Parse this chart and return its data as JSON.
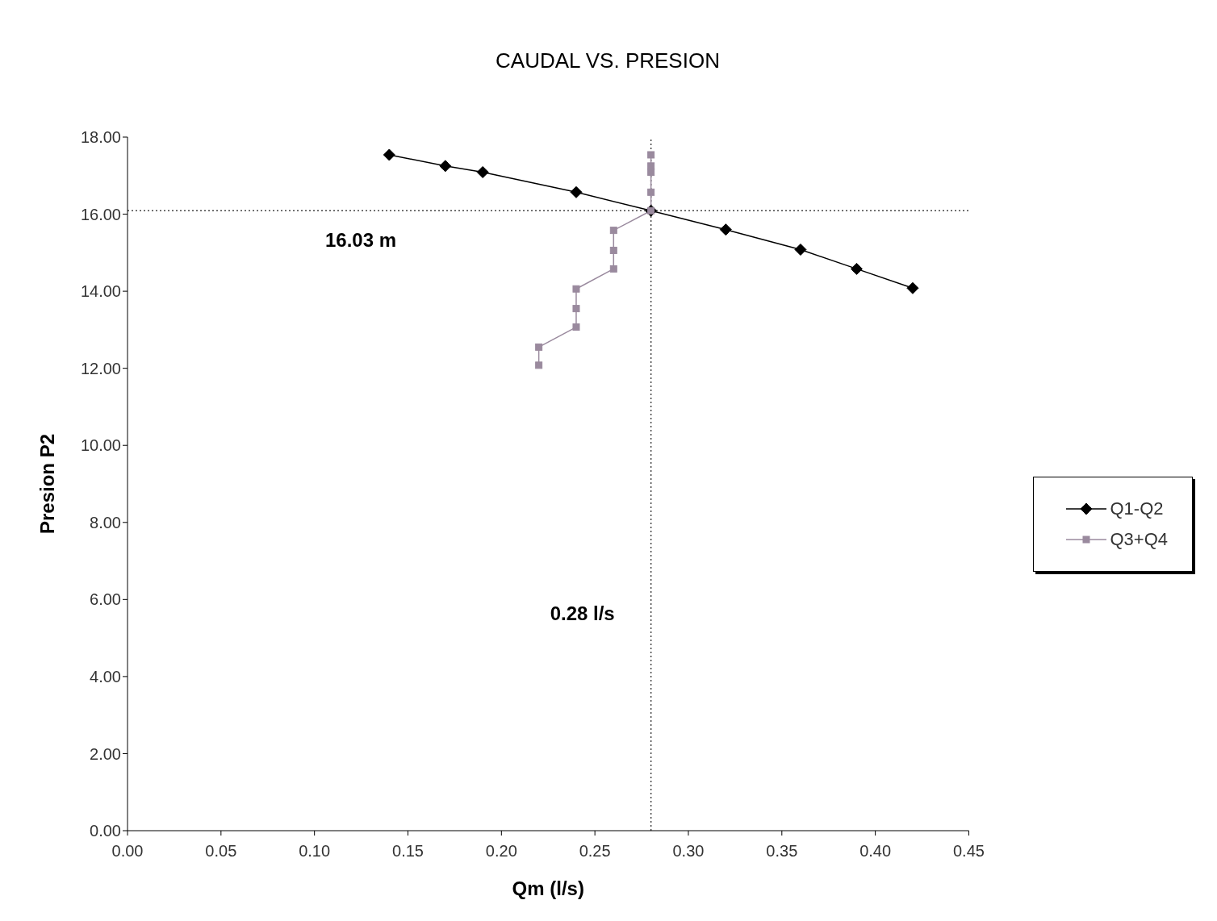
{
  "chart_data": {
    "type": "line",
    "title": "CAUDAL VS. PRESION",
    "xlabel": "Qm (l/s)",
    "ylabel": "Presion P2",
    "xlim": [
      0,
      0.45
    ],
    "xticks": [
      {
        "value": 0,
        "label": "0.00"
      },
      {
        "value": 0.05,
        "label": "0.05"
      },
      {
        "value": 0.1,
        "label": "0.10"
      },
      {
        "value": 0.15,
        "label": "0.15"
      },
      {
        "value": 0.2,
        "label": "0.20"
      },
      {
        "value": 0.25,
        "label": "0.25"
      },
      {
        "value": 0.3,
        "label": "0.30"
      },
      {
        "value": 0.35,
        "label": "0.35"
      },
      {
        "value": 0.4,
        "label": "0.40"
      },
      {
        "value": 0.45,
        "label": "0.45"
      }
    ],
    "ylim": [
      0,
      18
    ],
    "yticks": [
      {
        "value": 0,
        "label": "0.00"
      },
      {
        "value": 2,
        "label": "2.00"
      },
      {
        "value": 4,
        "label": "4.00"
      },
      {
        "value": 6,
        "label": "6.00"
      },
      {
        "value": 8,
        "label": "8.00"
      },
      {
        "value": 10,
        "label": "10.00"
      },
      {
        "value": 12,
        "label": "12.00"
      },
      {
        "value": 14,
        "label": "14.00"
      },
      {
        "value": 16,
        "label": "16.00"
      },
      {
        "value": 18,
        "label": "18.00"
      }
    ],
    "grid": false,
    "legend": "right",
    "line_style": "solid",
    "series": [
      {
        "name": "Q1-Q2",
        "color": "#000000",
        "marker": "diamond",
        "x": [
          0.14,
          0.17,
          0.19,
          0.24,
          0.28,
          0.32,
          0.36,
          0.39,
          0.42
        ],
        "values": [
          17.54,
          17.25,
          17.09,
          16.57,
          16.09,
          15.6,
          15.08,
          14.58,
          14.08
        ]
      },
      {
        "name": "Q3+Q4",
        "color": "#9a8a9e",
        "marker": "square",
        "x": [
          0.22,
          0.22,
          0.24,
          0.24,
          0.24,
          0.26,
          0.26,
          0.26,
          0.28,
          0.28,
          0.28,
          0.28,
          0.28
        ],
        "values": [
          12.08,
          12.55,
          13.07,
          13.55,
          14.06,
          14.58,
          15.06,
          15.58,
          16.09,
          16.57,
          17.09,
          17.25,
          17.54
        ]
      }
    ],
    "ref_lines": [
      {
        "axis": "y",
        "value": 16.09,
        "label": "16.03 m",
        "line_style": "dotted",
        "color": "#444444"
      },
      {
        "axis": "x",
        "value": 0.28,
        "label": "0.28 l/s",
        "line_style": "dotted",
        "color": "#444444"
      }
    ]
  }
}
